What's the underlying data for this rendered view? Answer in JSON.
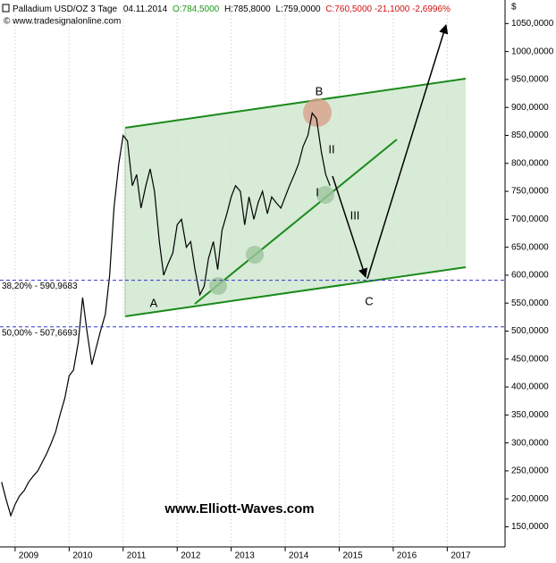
{
  "chart_data": {
    "type": "line",
    "header": {
      "name": "Palladium USD/OZ 3 Tage",
      "date": "04.11.2014",
      "open": "O:784,5000",
      "high": "H:785,8000",
      "low": "L:759,0000",
      "close": "C:760,5000 -21,1000 -2,6996%",
      "source": "© www.tradesignalonline.com"
    },
    "y_unit": "$",
    "watermark": "www.Elliott-Waves.com",
    "annotations": [
      "A",
      "B",
      "C",
      "I",
      "II",
      "III"
    ],
    "levels": [
      {
        "value": 590.9683,
        "label": "38,20% - 590,9683"
      },
      {
        "value": 507.6693,
        "label": "50,00% - 507,6693"
      }
    ],
    "x": [
      2008.75,
      2008.83,
      2008.92,
      2009.0,
      2009.08,
      2009.17,
      2009.25,
      2009.33,
      2009.42,
      2009.5,
      2009.58,
      2009.67,
      2009.75,
      2009.83,
      2009.92,
      2010.0,
      2010.08,
      2010.17,
      2010.25,
      2010.33,
      2010.42,
      2010.5,
      2010.58,
      2010.67,
      2010.75,
      2010.83,
      2010.92,
      2011.0,
      2011.08,
      2011.17,
      2011.25,
      2011.33,
      2011.42,
      2011.5,
      2011.58,
      2011.67,
      2011.75,
      2011.83,
      2011.92,
      2012.0,
      2012.08,
      2012.17,
      2012.25,
      2012.33,
      2012.42,
      2012.5,
      2012.58,
      2012.67,
      2012.75,
      2012.83,
      2012.92,
      2013.0,
      2013.08,
      2013.17,
      2013.25,
      2013.33,
      2013.42,
      2013.5,
      2013.58,
      2013.67,
      2013.75,
      2013.83,
      2013.92,
      2014.0,
      2014.08,
      2014.17,
      2014.25,
      2014.33,
      2014.42,
      2014.5,
      2014.58,
      2014.67,
      2014.75,
      2014.83
    ],
    "series": [
      {
        "name": "Palladium USD/OZ",
        "color": "#000000",
        "values": [
          230,
          200,
          170,
          190,
          205,
          215,
          230,
          240,
          250,
          265,
          280,
          300,
          320,
          350,
          380,
          420,
          430,
          480,
          560,
          500,
          440,
          470,
          500,
          530,
          600,
          720,
          800,
          850,
          840,
          760,
          780,
          720,
          760,
          790,
          750,
          660,
          600,
          620,
          640,
          690,
          700,
          650,
          660,
          610,
          565,
          580,
          630,
          660,
          610,
          680,
          710,
          740,
          760,
          750,
          690,
          740,
          700,
          730,
          750,
          710,
          740,
          730,
          720,
          740,
          760,
          780,
          800,
          830,
          850,
          890,
          880,
          820,
          780,
          760
        ]
      }
    ],
    "xlim": [
      2008.72,
      2018.07
    ],
    "ylim": [
      130,
      1072
    ],
    "xticks": [
      2009,
      2010,
      2011,
      2012,
      2013,
      2014,
      2015,
      2016,
      2017
    ],
    "yticks": [
      {
        "value": 150,
        "label": "150,0000"
      },
      {
        "value": 200,
        "label": "200,0000"
      },
      {
        "value": 250,
        "label": "250,0000"
      },
      {
        "value": 300,
        "label": "300,0000"
      },
      {
        "value": 350,
        "label": "350,0000"
      },
      {
        "value": 400,
        "label": "400,0000"
      },
      {
        "value": 450,
        "label": "450,0000"
      },
      {
        "value": 500,
        "label": "500,0000"
      },
      {
        "value": 550,
        "label": "550,0000"
      },
      {
        "value": 600,
        "label": "600,0000"
      },
      {
        "value": 650,
        "label": "650,0000"
      },
      {
        "value": 700,
        "label": "700,0000"
      },
      {
        "value": 750,
        "label": "750,0000"
      },
      {
        "value": 800,
        "label": "800,0000"
      },
      {
        "value": 850,
        "label": "850,0000"
      },
      {
        "value": 900,
        "label": "900,0000"
      },
      {
        "value": 950,
        "label": "950,0000"
      },
      {
        "value": 1000,
        "label": "1000,0000"
      },
      {
        "value": 1050,
        "label": "1050,0000"
      }
    ],
    "grid": true
  }
}
